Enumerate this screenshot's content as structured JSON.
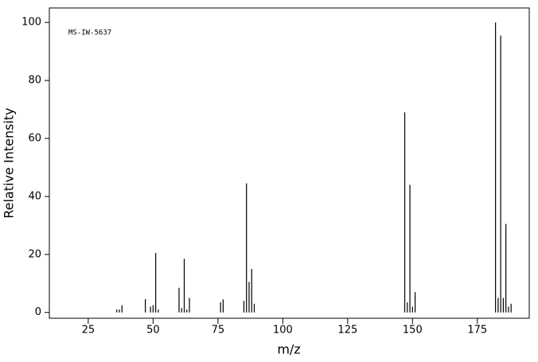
{
  "chart_data": {
    "type": "bar",
    "annotation": "MS-IW-5637",
    "x_label": "m/z",
    "y_label": "Relative Intensity",
    "x": [
      36,
      37,
      38,
      47,
      49,
      50,
      51,
      52,
      60,
      61,
      62,
      63,
      64,
      76,
      77,
      85,
      86,
      87,
      88,
      89,
      147,
      148,
      149,
      150,
      151,
      182,
      183,
      184,
      185,
      186,
      187,
      188
    ],
    "values": [
      1,
      1,
      2.5,
      4.6,
      2,
      2.5,
      20.5,
      1,
      8.5,
      1.5,
      18.5,
      1,
      5,
      3.5,
      4.5,
      4,
      44.5,
      10.5,
      15,
      3,
      69,
      3.5,
      44,
      2,
      7,
      100,
      5,
      95.5,
      5,
      30.5,
      2,
      3
    ],
    "color": "#000000",
    "xlim": [
      10,
      195
    ],
    "xticks": [
      25,
      50,
      75,
      100,
      125,
      150,
      175
    ],
    "ylim": [
      -2,
      105
    ],
    "yticks": [
      0,
      20,
      40,
      60,
      80,
      100
    ]
  }
}
